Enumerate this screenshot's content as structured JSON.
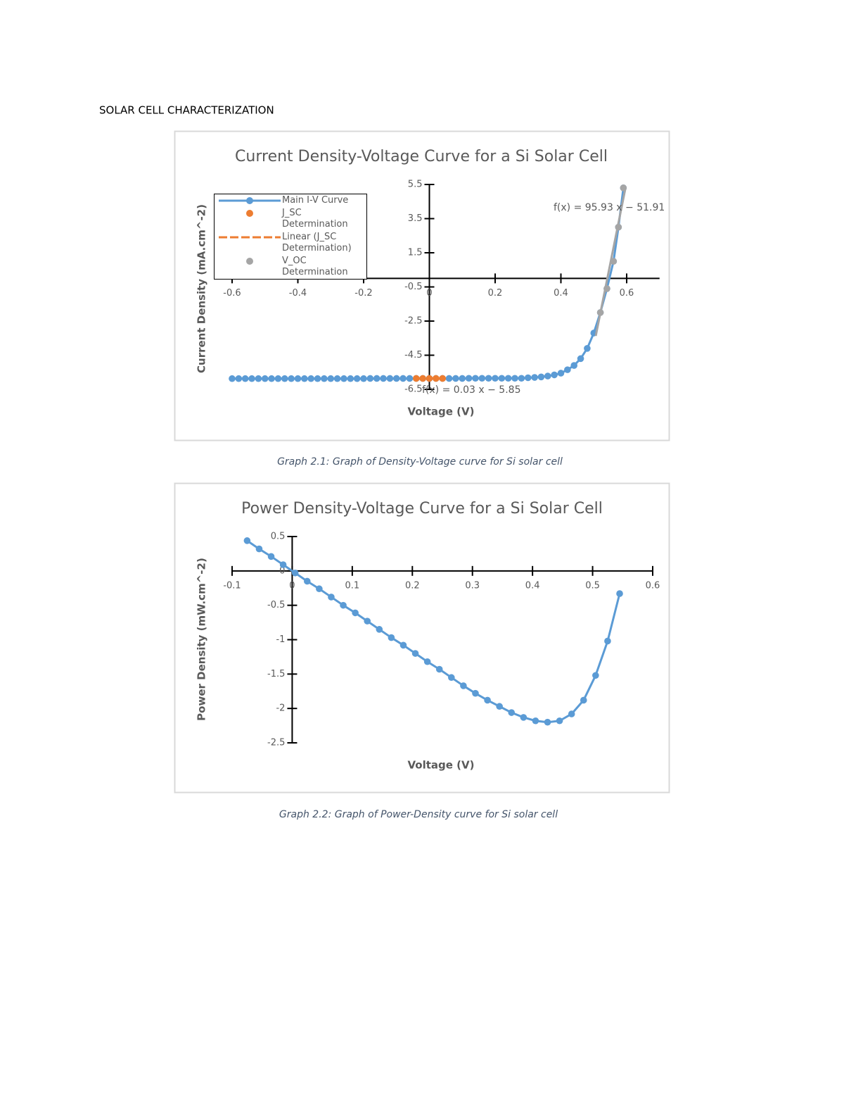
{
  "document": {
    "heading": "SOLAR CELL CHARACTERIZATION",
    "captions": [
      "Graph 2.1: Graph of Density-Voltage curve for Si solar cell",
      "Graph 2.2: Graph of Power-Density curve for Si solar cell"
    ]
  },
  "chart_data": [
    {
      "type": "scatter",
      "title": "Current Density-Voltage Curve for a Si Solar Cell",
      "x_label": "Voltage (V)",
      "y_label": "Current Density (mA.cm^-2)",
      "xlim": [
        -0.625,
        0.7
      ],
      "ylim": [
        -6.5,
        5.5
      ],
      "xticks": [
        -0.6,
        -0.4,
        -0.2,
        0,
        0.2,
        0.4,
        0.6
      ],
      "yticks": [
        5.5,
        3.5,
        1.5,
        -0.5,
        -2.5,
        -4.5,
        -6.5
      ],
      "legend": "top-left",
      "series": [
        {
          "name": "Main I-V Curve",
          "color": "#5b9bd5",
          "line": "solid",
          "marker": true,
          "x": [
            -0.6,
            -0.58,
            -0.56,
            -0.54,
            -0.52,
            -0.5,
            -0.48,
            -0.46,
            -0.44,
            -0.42,
            -0.4,
            -0.38,
            -0.36,
            -0.34,
            -0.32,
            -0.3,
            -0.28,
            -0.26,
            -0.24,
            -0.22,
            -0.2,
            -0.18,
            -0.16,
            -0.14,
            -0.12,
            -0.1,
            -0.08,
            -0.06,
            -0.04,
            -0.02,
            0,
            0.02,
            0.04,
            0.06,
            0.08,
            0.1,
            0.12,
            0.14,
            0.16,
            0.18,
            0.2,
            0.22,
            0.24,
            0.26,
            0.28,
            0.3,
            0.32,
            0.34,
            0.36,
            0.38,
            0.4,
            0.42,
            0.44,
            0.46,
            0.48,
            0.5,
            0.52,
            0.54,
            0.56,
            0.575,
            0.59
          ],
          "values": [
            -5.87,
            -5.87,
            -5.87,
            -5.87,
            -5.87,
            -5.87,
            -5.87,
            -5.87,
            -5.87,
            -5.87,
            -5.87,
            -5.87,
            -5.87,
            -5.87,
            -5.87,
            -5.87,
            -5.87,
            -5.87,
            -5.87,
            -5.87,
            -5.87,
            -5.86,
            -5.86,
            -5.86,
            -5.86,
            -5.86,
            -5.86,
            -5.86,
            -5.86,
            -5.86,
            -5.86,
            -5.86,
            -5.86,
            -5.86,
            -5.86,
            -5.86,
            -5.85,
            -5.85,
            -5.85,
            -5.85,
            -5.85,
            -5.85,
            -5.85,
            -5.85,
            -5.85,
            -5.82,
            -5.8,
            -5.77,
            -5.72,
            -5.65,
            -5.55,
            -5.35,
            -5.1,
            -4.7,
            -4.1,
            -3.2,
            -2.0,
            -0.6,
            1.0,
            3.0,
            5.3
          ]
        },
        {
          "name": "J_SC Determination",
          "color": "#ed7d31",
          "line": "none",
          "marker": true,
          "x": [
            -0.04,
            -0.02,
            0,
            0.02,
            0.04
          ],
          "values": [
            -5.86,
            -5.86,
            -5.86,
            -5.86,
            -5.86
          ]
        },
        {
          "name": "Linear (J_SC Determination)",
          "color": "#ed7d31",
          "line": "dashed",
          "marker": false,
          "x": [
            -0.04,
            0.05
          ],
          "values": [
            -5.85,
            -5.85
          ]
        },
        {
          "name": "V_OC Determination",
          "color": "#a5a5a5",
          "line": "none",
          "marker": true,
          "x": [
            0.52,
            0.54,
            0.56,
            0.575,
            0.59
          ],
          "values": [
            -2.0,
            -0.6,
            1.0,
            3.0,
            5.3
          ]
        },
        {
          "color": "#a5a5a5",
          "line": "solid",
          "marker": false,
          "x": [
            0.506,
            0.596
          ],
          "values": [
            -3.37,
            5.26
          ]
        }
      ],
      "annotations": [
        "f(x) = 95.93 x − 51.91",
        "f(x) = 0.03 x − 5.85"
      ]
    },
    {
      "type": "scatter",
      "title": "Power Density-Voltage Curve for a Si Solar Cell",
      "x_label": "Voltage (V)",
      "y_label": "Power Density (mW.cm^-2)",
      "xlim": [
        -0.1,
        0.6
      ],
      "ylim": [
        -2.5,
        0.5
      ],
      "xticks": [
        -0.1,
        0,
        0.1,
        0.2,
        0.3,
        0.4,
        0.5,
        0.6
      ],
      "yticks": [
        0.5,
        0,
        -0.5,
        -1,
        -1.5,
        -2,
        -2.5
      ],
      "series": [
        {
          "color": "#5b9bd5",
          "line": "solid",
          "marker": true,
          "x": [
            -0.075,
            -0.055,
            -0.035,
            -0.015,
            0.005,
            0.025,
            0.045,
            0.065,
            0.085,
            0.105,
            0.125,
            0.145,
            0.165,
            0.185,
            0.205,
            0.225,
            0.245,
            0.265,
            0.285,
            0.305,
            0.325,
            0.345,
            0.365,
            0.385,
            0.405,
            0.425,
            0.445,
            0.465,
            0.485,
            0.505,
            0.525,
            0.545
          ],
          "values": [
            0.44,
            0.32,
            0.21,
            0.09,
            -0.03,
            -0.15,
            -0.26,
            -0.38,
            -0.5,
            -0.61,
            -0.73,
            -0.85,
            -0.97,
            -1.08,
            -1.2,
            -1.32,
            -1.43,
            -1.55,
            -1.67,
            -1.78,
            -1.88,
            -1.97,
            -2.06,
            -2.13,
            -2.18,
            -2.2,
            -2.18,
            -2.08,
            -1.88,
            -1.52,
            -1.02,
            -0.33
          ]
        }
      ]
    }
  ]
}
